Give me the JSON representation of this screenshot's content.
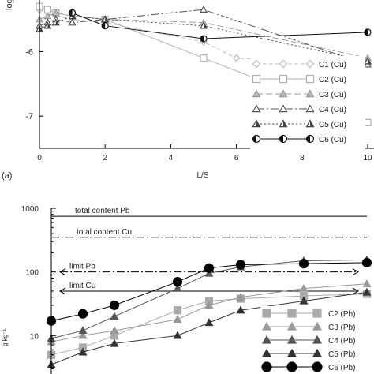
{
  "chart_data": [
    {
      "type": "line",
      "panel_label": "(a)",
      "xlabel": "L/S",
      "ylabel": "log",
      "xlim": [
        0,
        10
      ],
      "ylim": [
        -7.5,
        -5.2
      ],
      "x_scale": "linear",
      "y_scale": "linear",
      "x_ticks": [
        0,
        2,
        4,
        6,
        8,
        10
      ],
      "x_tick_labels": [
        "0",
        "2",
        "4",
        "6",
        "8",
        "10"
      ],
      "y_ticks": [
        -6,
        -7
      ],
      "y_tick_labels": [
        "-6",
        "-7"
      ],
      "grid": false,
      "legend_position": "bottom-right",
      "series": [
        {
          "name": "C1 (Cu)",
          "marker": "diamond",
          "fill": "none",
          "color": "#bdbdbd",
          "dash": "5 3",
          "x": [
            0,
            0.25,
            0.5,
            1,
            2,
            5,
            6,
            10
          ],
          "y": [
            -5.35,
            -5.4,
            -5.45,
            -5.5,
            -5.55,
            -5.85,
            -6.1,
            -6.2
          ]
        },
        {
          "name": "C2 (Cu)",
          "marker": "square",
          "fill": "none",
          "color": "#b0b0b0",
          "dash": "",
          "x": [
            0,
            0.25,
            0.5,
            1,
            2,
            5,
            10
          ],
          "y": [
            -5.3,
            -5.35,
            -5.4,
            -5.45,
            -5.5,
            -6.1,
            -7.1
          ]
        },
        {
          "name": "C3 (Cu)",
          "marker": "triangle",
          "fill": "#bdbdbd",
          "color": "#9a9a9a",
          "dash": "8 4",
          "x": [
            0,
            0.25,
            0.5,
            1,
            2,
            5,
            10
          ],
          "y": [
            -5.5,
            -5.45,
            -5.4,
            -5.45,
            -5.5,
            -5.55,
            -6.1
          ]
        },
        {
          "name": "C4 (Cu)",
          "marker": "triangle",
          "fill": "none",
          "color": "#555555",
          "dash": "10 3 2 3",
          "x": [
            0,
            0.25,
            0.5,
            1,
            2,
            5,
            10
          ],
          "y": [
            -5.6,
            -5.55,
            -5.5,
            -5.55,
            -5.5,
            -5.35,
            -6.2
          ]
        },
        {
          "name": "C5 (Cu)",
          "marker": "triangle",
          "fill": "half",
          "color": "#444444",
          "dash": "2 3",
          "x": [
            0,
            0.25,
            0.5,
            1,
            2,
            5,
            10
          ],
          "y": [
            -5.65,
            -5.6,
            -5.55,
            -5.45,
            -5.5,
            -5.6,
            -6.15
          ]
        },
        {
          "name": "C6 (Cu)",
          "marker": "circle",
          "fill": "half",
          "color": "#111111",
          "dash": "",
          "x": [
            1,
            2,
            5,
            10
          ],
          "y": [
            -5.4,
            -5.6,
            -5.8,
            -5.7
          ]
        }
      ]
    },
    {
      "type": "line",
      "xlabel": "",
      "ylabel": "g kg⁻¹",
      "xlim": [
        0,
        10
      ],
      "ylim": [
        1,
        1000
      ],
      "x_scale": "linear",
      "y_scale": "log",
      "y_ticks": [
        1000,
        100,
        10
      ],
      "y_tick_labels": [
        "1000",
        "100",
        "10"
      ],
      "grid": false,
      "legend_position": "bottom-right",
      "reference_lines": [
        {
          "label": "total content Pb",
          "value": 750,
          "style": "solid"
        },
        {
          "label": "total content Cu",
          "value": 350,
          "style": "dashdot"
        },
        {
          "label": "limit Pb",
          "value": 100,
          "style": "dashdot-arrow"
        },
        {
          "label": "limit Cu",
          "value": 50,
          "style": "solid-arrow"
        }
      ],
      "series": [
        {
          "name": "C2 (Pb)",
          "marker": "square",
          "fill": "#aaaaaa",
          "color": "#aaaaaa",
          "dash": "",
          "x": [
            0,
            1,
            2,
            4,
            5,
            6,
            8,
            10
          ],
          "y": [
            5,
            6.5,
            10,
            25,
            35,
            38,
            42,
            45
          ]
        },
        {
          "name": "C3 (Pb)",
          "marker": "triangle",
          "fill": "#999999",
          "color": "#999999",
          "dash": "",
          "x": [
            0,
            1,
            2,
            4,
            5,
            6,
            8,
            10
          ],
          "y": [
            8,
            10,
            12,
            18,
            30,
            40,
            55,
            65
          ]
        },
        {
          "name": "C4 (Pb)",
          "marker": "triangle",
          "fill": "#555555",
          "color": "#555555",
          "dash": "",
          "x": [
            0,
            1,
            2,
            4,
            5,
            6,
            8,
            10
          ],
          "y": [
            9,
            12,
            20,
            55,
            95,
            120,
            150,
            155
          ]
        },
        {
          "name": "C5 (Pb)",
          "marker": "triangle",
          "fill": "#333333",
          "color": "#333333",
          "dash": "",
          "x": [
            0,
            1,
            2,
            4,
            5,
            6,
            8,
            10
          ],
          "y": [
            3.5,
            5.5,
            7.5,
            10,
            16,
            25,
            35,
            48
          ]
        },
        {
          "name": "C6 (Pb)",
          "marker": "circle",
          "fill": "#000000",
          "color": "#000000",
          "dash": "",
          "x": [
            0,
            1,
            2,
            4,
            5,
            6,
            8,
            10
          ],
          "y": [
            17,
            22,
            30,
            70,
            115,
            130,
            135,
            140
          ]
        }
      ]
    }
  ]
}
